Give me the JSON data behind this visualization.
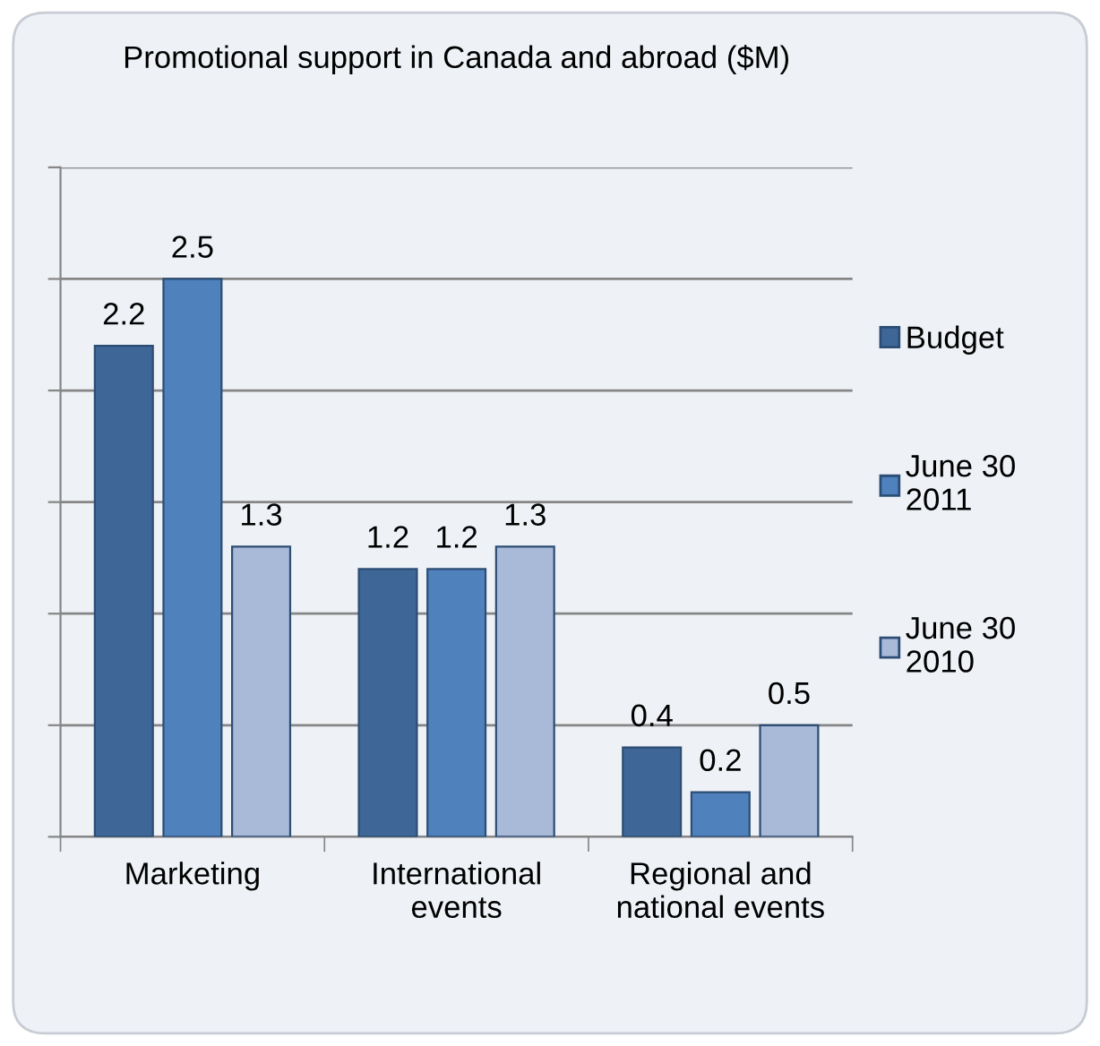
{
  "chart_data": {
    "type": "bar",
    "title": "Promotional support in Canada and abroad ($M)",
    "categories": [
      "Marketing",
      "International\nevents",
      "Regional and\nnational events"
    ],
    "series": [
      {
        "name": "Budget",
        "color": "#3e6696",
        "values": [
          2.2,
          1.2,
          0.4
        ]
      },
      {
        "name": "June 30\n2011",
        "color": "#4f81bd",
        "values": [
          2.5,
          1.2,
          0.2
        ]
      },
      {
        "name": "June 30\n2010",
        "color": "#a9bad8",
        "values": [
          1.3,
          1.3,
          0.5
        ]
      }
    ],
    "ylim": [
      0,
      3
    ],
    "yticks": [
      {
        "value": 0,
        "label": null
      },
      {
        "value": 0.5,
        "label": null
      },
      {
        "value": 1,
        "label": null
      },
      {
        "value": 1.5,
        "label": null
      },
      {
        "value": 2,
        "label": null
      },
      {
        "value": 2.5,
        "label": null
      },
      {
        "value": 3,
        "label": null
      }
    ],
    "grid": "y",
    "legend": "right",
    "data_labels": true
  }
}
